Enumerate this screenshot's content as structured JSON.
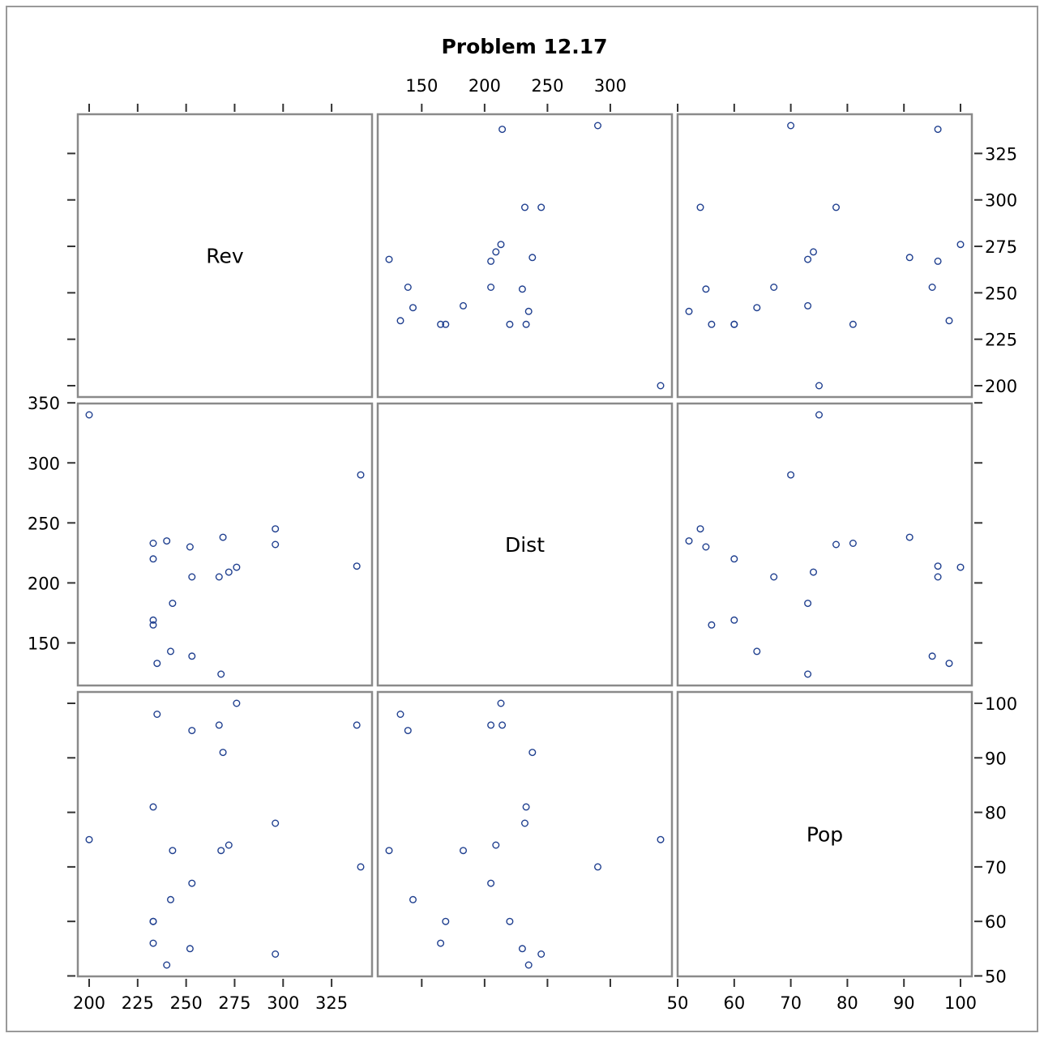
{
  "chart_data": {
    "type": "scatter",
    "subtype": "scatter-plot-matrix",
    "title": "Problem 12.17",
    "variables": [
      "Rev",
      "Dist",
      "Pop"
    ],
    "ranges": {
      "Rev": {
        "min": 200,
        "max": 340
      },
      "Dist": {
        "min": 124,
        "max": 340
      },
      "Pop": {
        "min": 52,
        "max": 100
      }
    },
    "ticks": {
      "Rev": [
        200,
        225,
        250,
        275,
        300,
        325
      ],
      "Dist": [
        150,
        200,
        250,
        300,
        350
      ],
      "Pop": [
        50,
        60,
        70,
        80,
        90,
        100
      ]
    },
    "tick_labels": {
      "Rev": [
        "200",
        "225",
        "250",
        "275",
        "300",
        "325"
      ],
      "Dist": [
        "150",
        "200",
        "250",
        "300",
        "350"
      ],
      "Pop": [
        "50",
        "60",
        "70",
        "80",
        "90",
        "100"
      ]
    },
    "observations": [
      {
        "Rev": 200,
        "Dist": 340,
        "Pop": 75
      },
      {
        "Rev": 233,
        "Dist": 233,
        "Pop": 81
      },
      {
        "Rev": 233,
        "Dist": 220,
        "Pop": 60
      },
      {
        "Rev": 233,
        "Dist": 169,
        "Pop": 60
      },
      {
        "Rev": 233,
        "Dist": 165,
        "Pop": 56
      },
      {
        "Rev": 235,
        "Dist": 133,
        "Pop": 98
      },
      {
        "Rev": 240,
        "Dist": 235,
        "Pop": 52
      },
      {
        "Rev": 242,
        "Dist": 143,
        "Pop": 64
      },
      {
        "Rev": 243,
        "Dist": 183,
        "Pop": 73
      },
      {
        "Rev": 252,
        "Dist": 230,
        "Pop": 55
      },
      {
        "Rev": 253,
        "Dist": 205,
        "Pop": 67
      },
      {
        "Rev": 253,
        "Dist": 139,
        "Pop": 95
      },
      {
        "Rev": 267,
        "Dist": 205,
        "Pop": 96
      },
      {
        "Rev": 268,
        "Dist": 124,
        "Pop": 73
      },
      {
        "Rev": 269,
        "Dist": 238,
        "Pop": 91
      },
      {
        "Rev": 272,
        "Dist": 209,
        "Pop": 74
      },
      {
        "Rev": 276,
        "Dist": 213,
        "Pop": 100
      },
      {
        "Rev": 296,
        "Dist": 245,
        "Pop": 54
      },
      {
        "Rev": 296,
        "Dist": 232,
        "Pop": 78
      },
      {
        "Rev": 338,
        "Dist": 214,
        "Pop": 96
      },
      {
        "Rev": 340,
        "Dist": 290,
        "Pop": 70
      }
    ],
    "marker": "open-circle",
    "marker_color": "#1f3f8f",
    "frame_color": "#8a8a8a",
    "grid": false,
    "legend": "none"
  }
}
